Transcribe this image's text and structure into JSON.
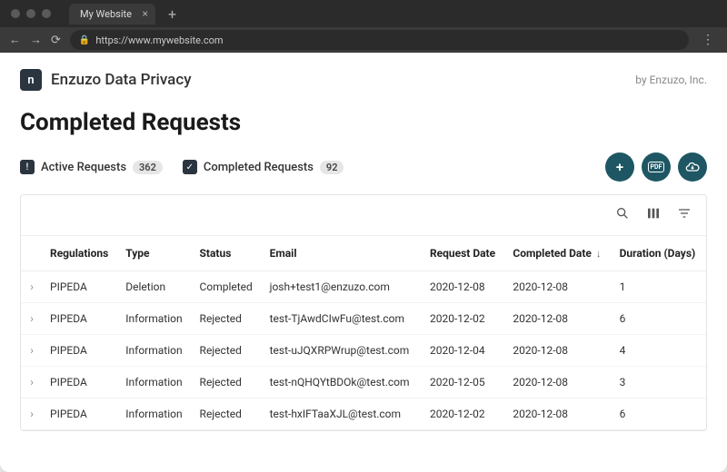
{
  "browser": {
    "tab_title": "My Website",
    "url": "https://www.mywebsite.com"
  },
  "header": {
    "app_name": "Enzuzo Data Privacy",
    "logo_letter": "n",
    "by_line": "by Enzuzo, Inc."
  },
  "page": {
    "title": "Completed Requests"
  },
  "tabs": {
    "active": {
      "label": "Active Requests",
      "count": "362"
    },
    "completed": {
      "label": "Completed Requests",
      "count": "92"
    }
  },
  "action_buttons": {
    "add": "+",
    "pdf": "PDF",
    "download": "cloud"
  },
  "table": {
    "columns": {
      "regulations": "Regulations",
      "type": "Type",
      "status": "Status",
      "email": "Email",
      "request_date": "Request Date",
      "completed_date": "Completed Date",
      "duration": "Duration (Days)"
    },
    "sort_column": "completed_date",
    "sort_dir": "desc",
    "rows": [
      {
        "regulations": "PIPEDA",
        "type": "Deletion",
        "status": "Completed",
        "email": "josh+test1@enzuzo.com",
        "request_date": "2020-12-08",
        "completed_date": "2020-12-08",
        "duration": "1"
      },
      {
        "regulations": "PIPEDA",
        "type": "Information",
        "status": "Rejected",
        "email": "test-TjAwdCIwFu@test.com",
        "request_date": "2020-12-02",
        "completed_date": "2020-12-08",
        "duration": "6"
      },
      {
        "regulations": "PIPEDA",
        "type": "Information",
        "status": "Rejected",
        "email": "test-uJQXRPWrup@test.com",
        "request_date": "2020-12-04",
        "completed_date": "2020-12-08",
        "duration": "4"
      },
      {
        "regulations": "PIPEDA",
        "type": "Information",
        "status": "Rejected",
        "email": "test-nQHQYtBDOk@test.com",
        "request_date": "2020-12-05",
        "completed_date": "2020-12-08",
        "duration": "3"
      },
      {
        "regulations": "PIPEDA",
        "type": "Information",
        "status": "Rejected",
        "email": "test-hxIFTaaXJL@test.com",
        "request_date": "2020-12-02",
        "completed_date": "2020-12-08",
        "duration": "6"
      }
    ]
  },
  "colors": {
    "chrome_bg": "#2b2b2b",
    "accent_dark": "#2a3540",
    "round_btn": "#1e5763",
    "border": "#e3e3e3"
  }
}
